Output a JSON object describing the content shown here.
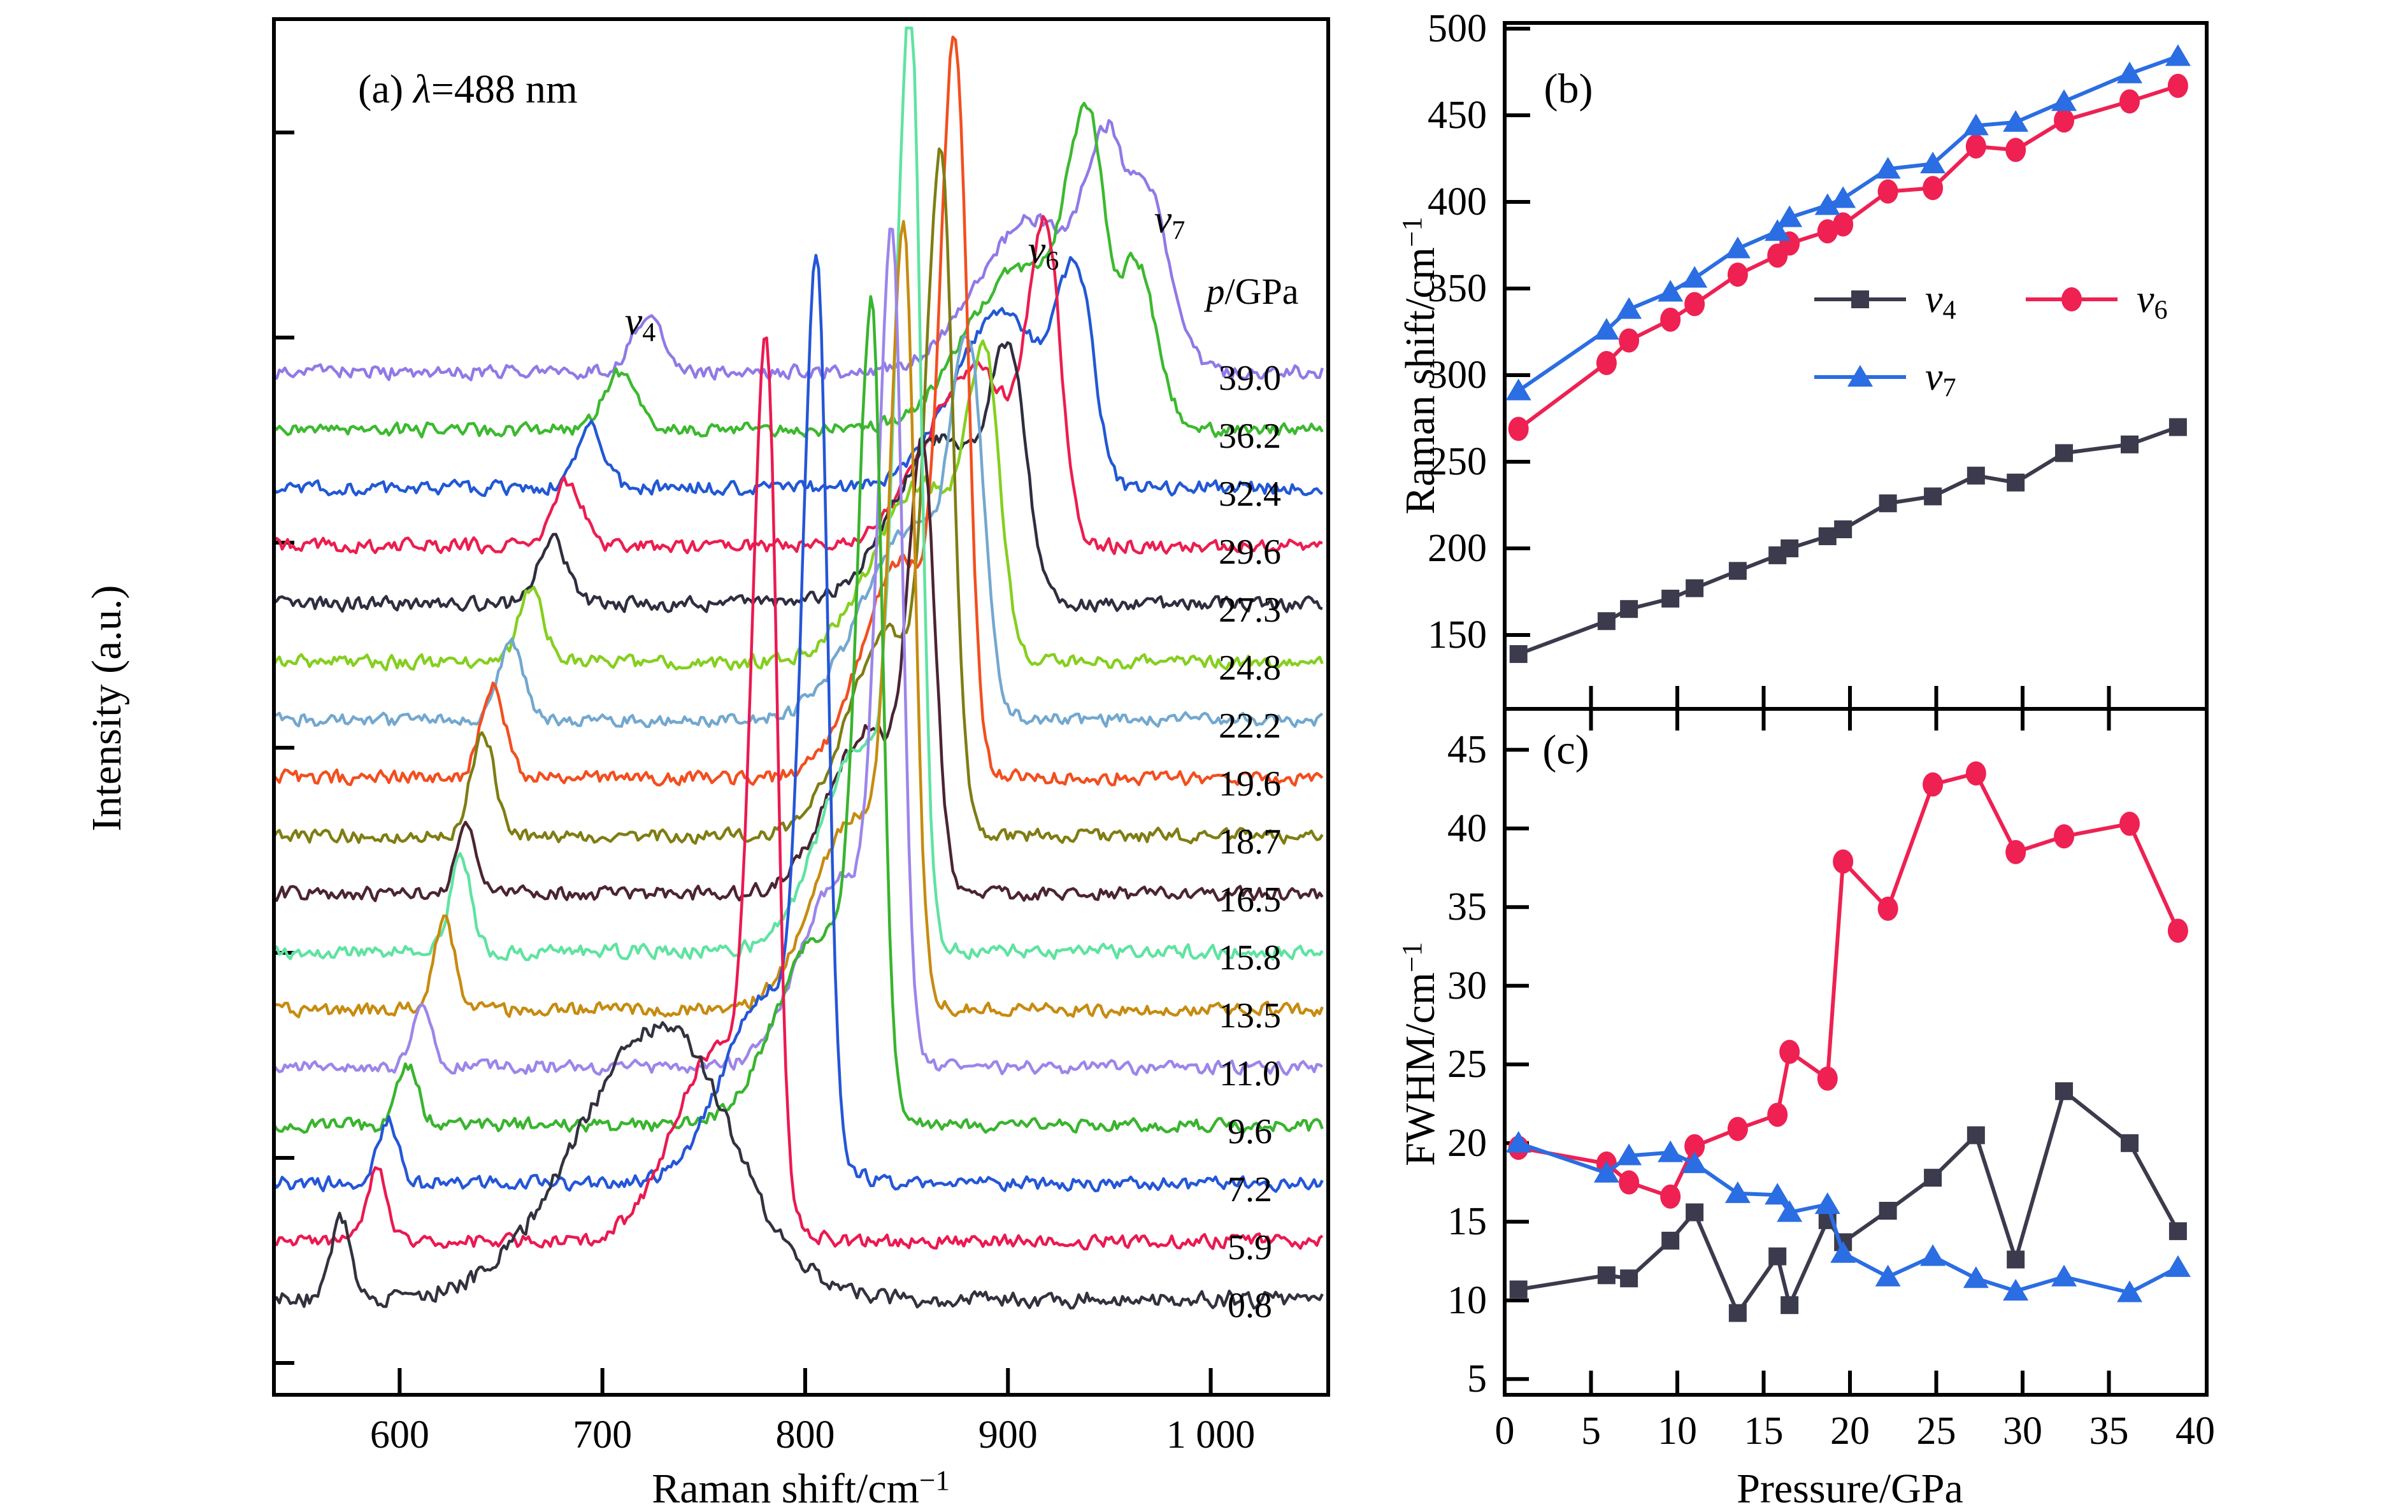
{
  "figure": {
    "panels": {
      "a": {
        "title_segments": [
          [
            "n",
            "(a) "
          ],
          [
            "i",
            "λ"
          ],
          [
            "n",
            "=488 nm"
          ]
        ],
        "xlabel_segments": [
          [
            "n",
            "Raman shift/cm"
          ],
          [
            "sup",
            "−1"
          ]
        ],
        "ylabel_segments": [
          [
            "n",
            "Intensity (a.u.)"
          ]
        ],
        "pressure_header_segments": [
          [
            "i",
            "p"
          ],
          [
            "n",
            "/GPa"
          ]
        ]
      },
      "b": {
        "letter": "(b)",
        "ylabel_segments": [
          [
            "n",
            "Raman shift/cm"
          ],
          [
            "sup",
            "−1"
          ]
        ]
      },
      "c": {
        "letter": "(c)",
        "ylabel_segments": [
          [
            "n",
            "FWHM/cm"
          ],
          [
            "sup",
            "−1"
          ]
        ],
        "xlabel_segments": [
          [
            "n",
            "Pressure/GPa"
          ]
        ]
      }
    },
    "annotations": {
      "v4": [
        [
          "i",
          "v"
        ],
        [
          "sub",
          "4"
        ]
      ],
      "v6": [
        [
          "i",
          "v"
        ],
        [
          "sub",
          "6"
        ]
      ],
      "v7": [
        [
          "i",
          "v"
        ],
        [
          "sub",
          "7"
        ]
      ]
    },
    "legend": [
      {
        "name": "v4",
        "segments": [
          [
            "i",
            "v"
          ],
          [
            "sub",
            "4"
          ]
        ],
        "marker": "square",
        "color": "#3b3b4d"
      },
      {
        "name": "v6",
        "segments": [
          [
            "i",
            "v"
          ],
          [
            "sub",
            "6"
          ]
        ],
        "marker": "circle",
        "color": "#ee2152"
      },
      {
        "name": "v7",
        "segments": [
          [
            "i",
            "v"
          ],
          [
            "sub",
            "7"
          ]
        ],
        "marker": "triangle",
        "color": "#2b6de2"
      }
    ]
  },
  "chart_data": [
    {
      "type": "line",
      "panel": "a",
      "title": "(a) λ=488 nm",
      "xlabel": "Raman shift/cm−1",
      "ylabel": "Intensity (a.u.)",
      "xlim": [
        538,
        1058
      ],
      "x_tick_values": [
        600,
        700,
        800,
        900,
        1000
      ],
      "x_tick_labels": [
        "600",
        "700",
        "800",
        "900",
        "1 000"
      ],
      "pressure_column_header": "p/GPa",
      "annotation_positions": {
        "v4": [
          1005,
          505
        ],
        "v6": [
          1638,
          393
        ],
        "v7": [
          1836,
          345
        ]
      },
      "traces_note": "bottom to top; v4_peak=[center_cm-1,height_px,sigma]; main_peaks=[center,height_px,sigmaL,sigmaR]",
      "traces": [
        {
          "pressure_label": "0.8",
          "color": "#32323f",
          "v4_peak": [
            571,
            130,
            5
          ],
          "main_peaks": [
            [
              730,
              430,
              42,
              34
            ]
          ]
        },
        {
          "pressure_label": "5.9",
          "color": "#eb1951",
          "v4_peak": [
            589,
            110,
            5
          ],
          "main_peaks": [
            [
              757,
              300,
              22,
              18
            ],
            [
              781,
              1300,
              7,
              5
            ]
          ]
        },
        {
          "pressure_label": "7.2",
          "color": "#2456d8",
          "v4_peak": [
            594,
            100,
            5
          ],
          "main_peaks": [
            [
              782,
              300,
              22,
              18
            ],
            [
              806,
              1340,
              7,
              5
            ]
          ]
        },
        {
          "pressure_label": "9.6",
          "color": "#39b42e",
          "v4_peak": [
            604,
            95,
            5
          ],
          "main_peaks": [
            [
              808,
              300,
              22,
              18
            ],
            [
              833,
              1180,
              7,
              5
            ]
          ]
        },
        {
          "pressure_label": "11.0",
          "color": "#9c85ea",
          "v4_peak": [
            611,
            90,
            5
          ],
          "main_peaks": [
            [
              818,
              300,
              20,
              16
            ],
            [
              843,
              1230,
              7,
              5
            ]
          ]
        },
        {
          "pressure_label": "13.5",
          "color": "#c78b10",
          "v4_peak": [
            622,
            145,
            5
          ],
          "main_peaks": [
            [
              824,
              300,
              20,
              16
            ],
            [
              849,
              1140,
              7,
              5
            ]
          ]
        },
        {
          "pressure_label": "15.8",
          "color": "#5fe3a1",
          "v4_peak": [
            630,
            155,
            5
          ],
          "main_peaks": [
            [
              827,
              320,
              20,
              16
            ],
            [
              852,
              1400,
              7,
              5
            ]
          ]
        },
        {
          "pressure_label": "16.5",
          "color": "#4b2433",
          "v4_peak": [
            633,
            115,
            5
          ],
          "main_peaks": [
            [
              832,
              260,
              20,
              16
            ],
            [
              858,
              640,
              7,
              6
            ]
          ]
        },
        {
          "pressure_label": "18.7",
          "color": "#7f7d13",
          "v4_peak": [
            641,
            160,
            6
          ],
          "main_peaks": [
            [
              841,
              320,
              20,
              16
            ],
            [
              867,
              990,
              7,
              6
            ]
          ]
        },
        {
          "pressure_label": "19.6",
          "color": "#f34e1f",
          "v4_peak": [
            646,
            145,
            6
          ],
          "main_peaks": [
            [
              848,
              340,
              20,
              16
            ],
            [
              874,
              1080,
              7,
              6
            ]
          ]
        },
        {
          "pressure_label": "22.2",
          "color": "#73a8cf",
          "v4_peak": [
            655,
            125,
            6
          ],
          "main_peaks": [
            [
              852,
              300,
              24,
              18
            ],
            [
              881,
              520,
              9,
              7
            ]
          ]
        },
        {
          "pressure_label": "24.8",
          "color": "#85cf1f",
          "v4_peak": [
            665,
            115,
            6
          ],
          "main_peaks": [
            [
              858,
              280,
              24,
              18
            ],
            [
              889,
              430,
              9,
              7
            ]
          ]
        },
        {
          "pressure_label": "27.3",
          "color": "#2e2e40",
          "v4_peak": [
            675,
            105,
            7
          ],
          "main_peaks": [
            [
              868,
              260,
              24,
              18
            ],
            [
              901,
              360,
              10,
              8
            ]
          ]
        },
        {
          "pressure_label": "29.6",
          "color": "#ec1d4f",
          "v4_peak": [
            683,
            100,
            7
          ],
          "main_peaks": [
            [
              884,
              280,
              24,
              18
            ],
            [
              919,
              470,
              9,
              7
            ]
          ]
        },
        {
          "pressure_label": "32.4",
          "color": "#2158d5",
          "v4_peak": [
            694,
            95,
            7
          ],
          "main_peaks": [
            [
              898,
              280,
              24,
              18
            ],
            [
              934,
              320,
              10,
              8
            ]
          ]
        },
        {
          "pressure_label": "36.2",
          "color": "#3cb92f",
          "v4_peak": [
            709,
            90,
            8
          ],
          "main_peaks": [
            [
              905,
              250,
              26,
              20
            ],
            [
              940,
              450,
              11,
              8
            ],
            [
              963,
              260,
              8,
              10
            ]
          ]
        },
        {
          "pressure_label": "39.0",
          "color": "#9179e7",
          "v4_peak": [
            722,
            85,
            8
          ],
          "main_peaks": [
            [
              912,
              240,
              26,
              20
            ],
            [
              949,
              330,
              11,
              8
            ],
            [
              968,
              280,
              8,
              12
            ]
          ]
        }
      ]
    },
    {
      "type": "scatter",
      "panel": "b",
      "title": "(b)",
      "ylabel": "Raman shift/cm−1",
      "xlim": [
        0,
        40.7
      ],
      "ylim": [
        113,
        502
      ],
      "y_ticks": [
        150,
        200,
        250,
        300,
        350,
        400,
        450,
        500
      ],
      "x_minor_ticks": [
        5,
        10,
        15,
        20,
        25,
        30,
        35
      ],
      "legend_position": "inside center",
      "x": [
        0.8,
        5.9,
        7.2,
        9.6,
        11.0,
        13.5,
        15.8,
        16.5,
        18.7,
        19.6,
        22.2,
        24.8,
        27.3,
        29.6,
        32.4,
        36.2,
        39.0
      ],
      "series": [
        {
          "name": "v4",
          "marker": "square",
          "color": "#3b3b4d",
          "values": [
            139,
            158,
            165,
            171,
            177,
            187,
            196,
            200,
            207,
            211,
            226,
            230,
            242,
            238,
            255,
            260,
            270
          ]
        },
        {
          "name": "v6",
          "marker": "circle",
          "color": "#ee2152",
          "values": [
            269,
            307,
            320,
            332,
            341,
            358,
            369,
            376,
            383,
            387,
            406,
            408,
            432,
            430,
            447,
            458,
            467
          ]
        },
        {
          "name": "v7",
          "marker": "triangle",
          "color": "#2b6de2",
          "values": [
            291,
            326,
            338,
            348,
            356,
            373,
            383,
            391,
            398,
            402,
            419,
            422,
            444,
            446,
            458,
            474,
            484
          ]
        }
      ]
    },
    {
      "type": "scatter",
      "panel": "c",
      "title": "(c)",
      "xlabel": "Pressure/GPa",
      "ylabel": "FWHM/cm−1",
      "xlim": [
        0,
        40.7
      ],
      "ylim": [
        4,
        47.5
      ],
      "y_ticks": [
        5,
        10,
        15,
        20,
        25,
        30,
        35,
        40,
        45
      ],
      "x_tick_labels": [
        "0",
        "5",
        "10",
        "15",
        "20",
        "25",
        "30",
        "35",
        "40"
      ],
      "x_tick_values": [
        0,
        5,
        10,
        15,
        20,
        25,
        30,
        35,
        40
      ],
      "x": [
        0.8,
        5.9,
        7.2,
        9.6,
        11.0,
        13.5,
        15.8,
        16.5,
        18.7,
        19.6,
        22.2,
        24.8,
        27.3,
        29.6,
        32.4,
        36.2,
        39.0
      ],
      "series": [
        {
          "name": "v4",
          "marker": "square",
          "color": "#3b3b4d",
          "values": [
            10.7,
            11.6,
            11.4,
            13.8,
            15.6,
            9.2,
            12.8,
            9.7,
            15.1,
            13.7,
            15.7,
            17.8,
            20.5,
            12.6,
            23.3,
            20.0,
            14.4
          ]
        },
        {
          "name": "v6",
          "marker": "circle",
          "color": "#ee2152",
          "values": [
            19.7,
            18.7,
            17.5,
            16.6,
            19.8,
            20.9,
            21.8,
            25.8,
            24.1,
            37.9,
            34.9,
            42.8,
            43.5,
            38.5,
            39.5,
            40.3,
            33.5
          ]
        },
        {
          "name": "v7",
          "marker": "triangle",
          "color": "#2b6de2",
          "values": [
            20.0,
            18.1,
            19.2,
            19.4,
            18.7,
            16.8,
            16.7,
            15.6,
            16.1,
            13.0,
            11.5,
            12.8,
            11.4,
            10.6,
            11.5,
            10.5,
            12.1
          ]
        }
      ]
    }
  ]
}
